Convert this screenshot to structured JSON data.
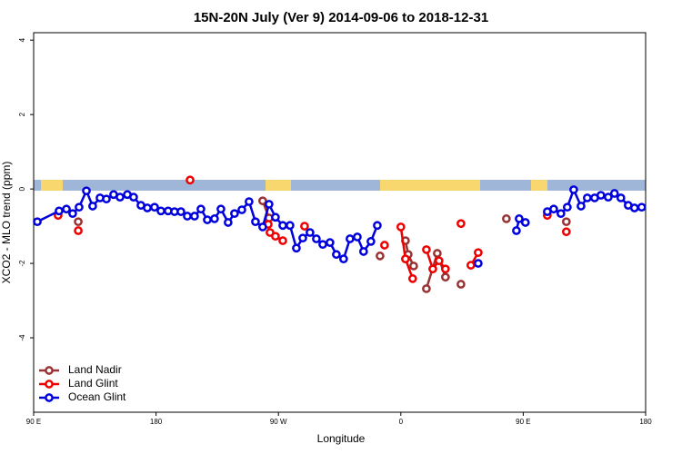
{
  "chart_data": {
    "type": "line",
    "title": "15N-20N July (Ver 9)   2014-09-06 to 2018-12-31",
    "x_label": "Longitude",
    "y_label": "XCO2 - MLO trend (ppm)",
    "xlim": [
      90,
      540
    ],
    "ylim": [
      -6,
      4.2
    ],
    "xticks": [
      {
        "value": 90,
        "label": "90 E"
      },
      180,
      {
        "value": 270,
        "label": "90 W"
      },
      {
        "value": 360,
        "label": "0"
      },
      {
        "value": 450,
        "label": "90 E"
      },
      {
        "value": 540,
        "label": "180"
      }
    ],
    "yticks": [
      -4,
      -2,
      0,
      2,
      4
    ],
    "legend": "bottom-left",
    "series": [
      {
        "name": "Land Nadir",
        "color": "#993333",
        "x": [
          122.8,
          null,
          258.4,
          263.1,
          null,
          344.7,
          null,
          363.4,
          365.4,
          369.4,
          null,
          378.8,
          386.8,
          392.8,
          null,
          404.2,
          null,
          437.6,
          null,
          481.7
        ],
        "values": [
          -0.88,
          null,
          -0.32,
          -0.78,
          null,
          -1.8,
          null,
          -1.39,
          -1.76,
          -2.07,
          null,
          -2.68,
          -1.73,
          -2.37,
          null,
          -2.56,
          null,
          -0.8,
          null,
          -0.88
        ]
      },
      {
        "name": "Land Glint",
        "color": "#ee0000",
        "x": [
          108,
          null,
          122.8,
          null,
          205,
          null,
          262.5,
          263.8,
          267.8,
          273.2,
          null,
          289.2,
          null,
          348,
          null,
          360,
          363.4,
          368.7,
          null,
          378.8,
          383.5,
          388.1,
          392.8,
          null,
          404.2,
          null,
          411.5,
          416.9,
          null,
          467.7,
          null,
          481.7
        ],
        "values": [
          -0.71,
          null,
          -1.12,
          null,
          0.24,
          null,
          -0.95,
          -1.17,
          -1.27,
          -1.39,
          null,
          -1.0,
          null,
          -1.51,
          null,
          -1.02,
          -1.88,
          -2.41,
          null,
          -1.63,
          -2.15,
          -1.93,
          -2.15,
          null,
          -0.93,
          null,
          -2.05,
          -1.71,
          null,
          -0.71,
          null,
          -1.15
        ]
      },
      {
        "name": "Ocean Glint",
        "color": "#0000dd",
        "x": [
          92.7,
          108.7,
          114.1,
          118.7,
          123.4,
          128.8,
          133.4,
          138.8,
          143.5,
          148.8,
          153.5,
          158.9,
          163.5,
          168.9,
          173.6,
          178.9,
          183.6,
          188.9,
          193.6,
          198.3,
          203,
          208.3,
          213,
          217.7,
          223,
          227.7,
          233,
          237.7,
          243.1,
          248.4,
          253.1,
          258.4,
          263.1,
          267.8,
          273.2,
          278.5,
          283.2,
          287.9,
          293.2,
          297.9,
          302.6,
          307.9,
          312.6,
          317.9,
          322.6,
          328,
          332.6,
          338,
          342.7,
          null,
          416.9,
          null,
          445,
          447,
          451.6,
          null,
          467.7,
          472.4,
          477.7,
          482.4,
          487.1,
          492.5,
          497.1,
          502.5,
          507.1,
          512.5,
          517.1,
          521.8,
          527.2,
          531.8,
          537.1
        ],
        "values": [
          -0.88,
          -0.59,
          -0.54,
          -0.66,
          -0.49,
          -0.05,
          -0.46,
          -0.24,
          -0.27,
          -0.15,
          -0.22,
          -0.15,
          -0.22,
          -0.44,
          -0.51,
          -0.49,
          -0.59,
          -0.59,
          -0.61,
          -0.61,
          -0.73,
          -0.73,
          -0.54,
          -0.83,
          -0.8,
          -0.54,
          -0.9,
          -0.66,
          -0.56,
          -0.34,
          -0.88,
          -1.02,
          -0.41,
          -0.76,
          -0.98,
          -0.98,
          -1.59,
          -1.32,
          -1.17,
          -1.34,
          -1.49,
          -1.44,
          -1.76,
          -1.88,
          -1.34,
          -1.29,
          -1.68,
          -1.41,
          -0.98,
          null,
          -2.0,
          null,
          -1.12,
          -0.8,
          -0.9,
          null,
          -0.61,
          -0.54,
          -0.66,
          -0.49,
          -0.02,
          -0.46,
          -0.24,
          -0.24,
          -0.17,
          -0.22,
          -0.12,
          -0.24,
          -0.44,
          -0.51,
          -0.49
        ]
      }
    ]
  }
}
